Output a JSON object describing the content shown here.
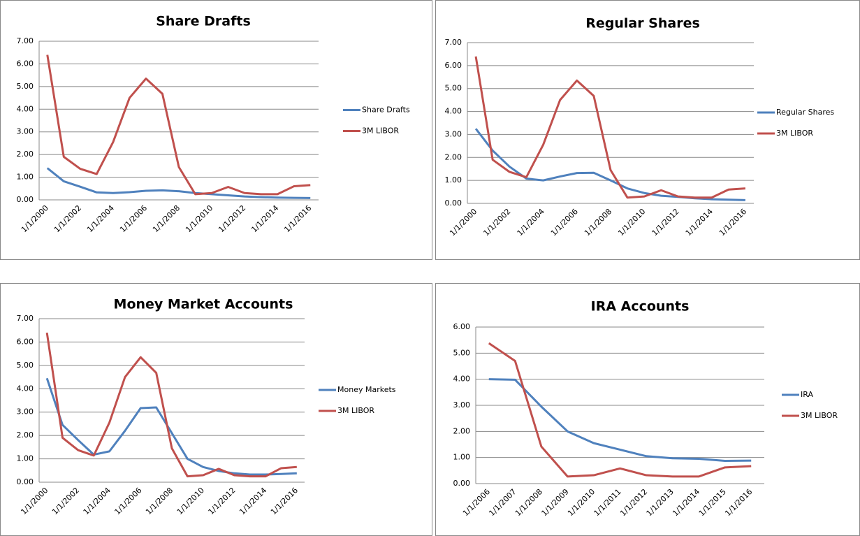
{
  "chart_data": [
    {
      "type": "line",
      "title": "Share Drafts",
      "categories": [
        "1/1/2000",
        null,
        "1/1/2002",
        null,
        "1/1/2004",
        null,
        "1/1/2006",
        null,
        "1/1/2008",
        null,
        "1/1/2010",
        null,
        "1/1/2012",
        null,
        "1/1/2014",
        null,
        "1/1/2016"
      ],
      "series": [
        {
          "name": "Share Drafts",
          "color": "#4f81bd",
          "values": [
            1.4,
            0.82,
            0.58,
            0.33,
            0.3,
            0.34,
            0.4,
            0.42,
            0.38,
            0.3,
            0.25,
            0.2,
            0.15,
            0.12,
            0.1,
            0.09,
            0.08
          ]
        },
        {
          "name": "3M LIBOR",
          "color": "#c0504d",
          "values": [
            6.4,
            1.9,
            1.37,
            1.14,
            2.55,
            4.5,
            5.35,
            4.68,
            1.45,
            0.25,
            0.3,
            0.57,
            0.3,
            0.25,
            0.25,
            0.6,
            0.65
          ]
        }
      ],
      "ylim": [
        0,
        7
      ],
      "yticks": [
        {
          "value": 0,
          "label": "0.00"
        },
        {
          "value": 1,
          "label": "1.00"
        },
        {
          "value": 2,
          "label": "2.00"
        },
        {
          "value": 3,
          "label": "3.00"
        },
        {
          "value": 4,
          "label": "4.00"
        },
        {
          "value": 5,
          "label": "5.00"
        },
        {
          "value": 6,
          "label": "6.00"
        },
        {
          "value": 7,
          "label": "7.00"
        }
      ],
      "grid": true,
      "legend": "right"
    },
    {
      "type": "line",
      "title": "Regular Shares",
      "categories": [
        "1/1/2000",
        null,
        "1/1/2002",
        null,
        "1/1/2004",
        null,
        "1/1/2006",
        null,
        "1/1/2008",
        null,
        "1/1/2010",
        null,
        "1/1/2012",
        null,
        "1/1/2014",
        null,
        "1/1/2016"
      ],
      "series": [
        {
          "name": "Regular Shares",
          "color": "#4f81bd",
          "values": [
            3.25,
            2.3,
            1.6,
            1.08,
            1.0,
            1.17,
            1.32,
            1.33,
            1.0,
            0.65,
            0.45,
            0.33,
            0.28,
            0.22,
            0.18,
            0.16,
            0.14
          ]
        },
        {
          "name": "3M LIBOR",
          "color": "#c0504d",
          "values": [
            6.4,
            1.9,
            1.37,
            1.14,
            2.55,
            4.5,
            5.35,
            4.68,
            1.45,
            0.25,
            0.3,
            0.57,
            0.3,
            0.25,
            0.25,
            0.6,
            0.65
          ]
        }
      ],
      "ylim": [
        0,
        7
      ],
      "yticks": [
        {
          "value": 0,
          "label": "0.00"
        },
        {
          "value": 1,
          "label": "1.00"
        },
        {
          "value": 2,
          "label": "2.00"
        },
        {
          "value": 3,
          "label": "3.00"
        },
        {
          "value": 4,
          "label": "4.00"
        },
        {
          "value": 5,
          "label": "5.00"
        },
        {
          "value": 6,
          "label": "6.00"
        },
        {
          "value": 7,
          "label": "7.00"
        }
      ],
      "grid": true,
      "legend": "right"
    },
    {
      "type": "line",
      "title": "Money Market Accounts",
      "categories": [
        "1/1/2000",
        null,
        "1/1/2002",
        null,
        "1/1/2004",
        null,
        "1/1/2006",
        null,
        "1/1/2008",
        null,
        "1/1/2010",
        null,
        "1/1/2012",
        null,
        "1/1/2014",
        null,
        "1/1/2016"
      ],
      "series": [
        {
          "name": "Money Markets",
          "color": "#4f81bd",
          "values": [
            4.45,
            2.45,
            1.8,
            1.18,
            1.32,
            2.2,
            3.17,
            3.2,
            2.1,
            1.0,
            0.65,
            0.48,
            0.38,
            0.33,
            0.33,
            0.35,
            0.38
          ]
        },
        {
          "name": "3M LIBOR",
          "color": "#c0504d",
          "values": [
            6.4,
            1.9,
            1.37,
            1.14,
            2.55,
            4.5,
            5.35,
            4.68,
            1.45,
            0.25,
            0.3,
            0.57,
            0.3,
            0.25,
            0.25,
            0.6,
            0.65
          ]
        }
      ],
      "ylim": [
        0,
        7
      ],
      "yticks": [
        {
          "value": 0,
          "label": "0.00"
        },
        {
          "value": 1,
          "label": "1.00"
        },
        {
          "value": 2,
          "label": "2.00"
        },
        {
          "value": 3,
          "label": "3.00"
        },
        {
          "value": 4,
          "label": "4.00"
        },
        {
          "value": 5,
          "label": "5.00"
        },
        {
          "value": 6,
          "label": "6.00"
        },
        {
          "value": 7,
          "label": "7.00"
        }
      ],
      "grid": true,
      "legend": "right"
    },
    {
      "type": "line",
      "title": "IRA Accounts",
      "categories": [
        "1/1/2006",
        "1/1/2007",
        "1/1/2008",
        "1/1/2009",
        "1/1/2010",
        "1/1/2011",
        "1/1/2012",
        "1/1/2013",
        "1/1/2014",
        "1/1/2015",
        "1/1/2016"
      ],
      "series": [
        {
          "name": "IRA",
          "color": "#4f81bd",
          "values": [
            4.0,
            3.98,
            2.95,
            2.0,
            1.55,
            1.3,
            1.05,
            0.97,
            0.95,
            0.87,
            0.88
          ]
        },
        {
          "name": "3M LIBOR",
          "color": "#c0504d",
          "values": [
            5.38,
            4.7,
            1.42,
            0.27,
            0.32,
            0.58,
            0.32,
            0.27,
            0.27,
            0.62,
            0.67
          ]
        }
      ],
      "ylim": [
        0,
        6
      ],
      "yticks": [
        {
          "value": 0,
          "label": "0.00"
        },
        {
          "value": 1,
          "label": "1.00"
        },
        {
          "value": 2,
          "label": "2.00"
        },
        {
          "value": 3,
          "label": "3.00"
        },
        {
          "value": 4,
          "label": "4.00"
        },
        {
          "value": 5,
          "label": "5.00"
        },
        {
          "value": 6,
          "label": "6.00"
        }
      ],
      "grid": true,
      "legend": "right"
    }
  ]
}
